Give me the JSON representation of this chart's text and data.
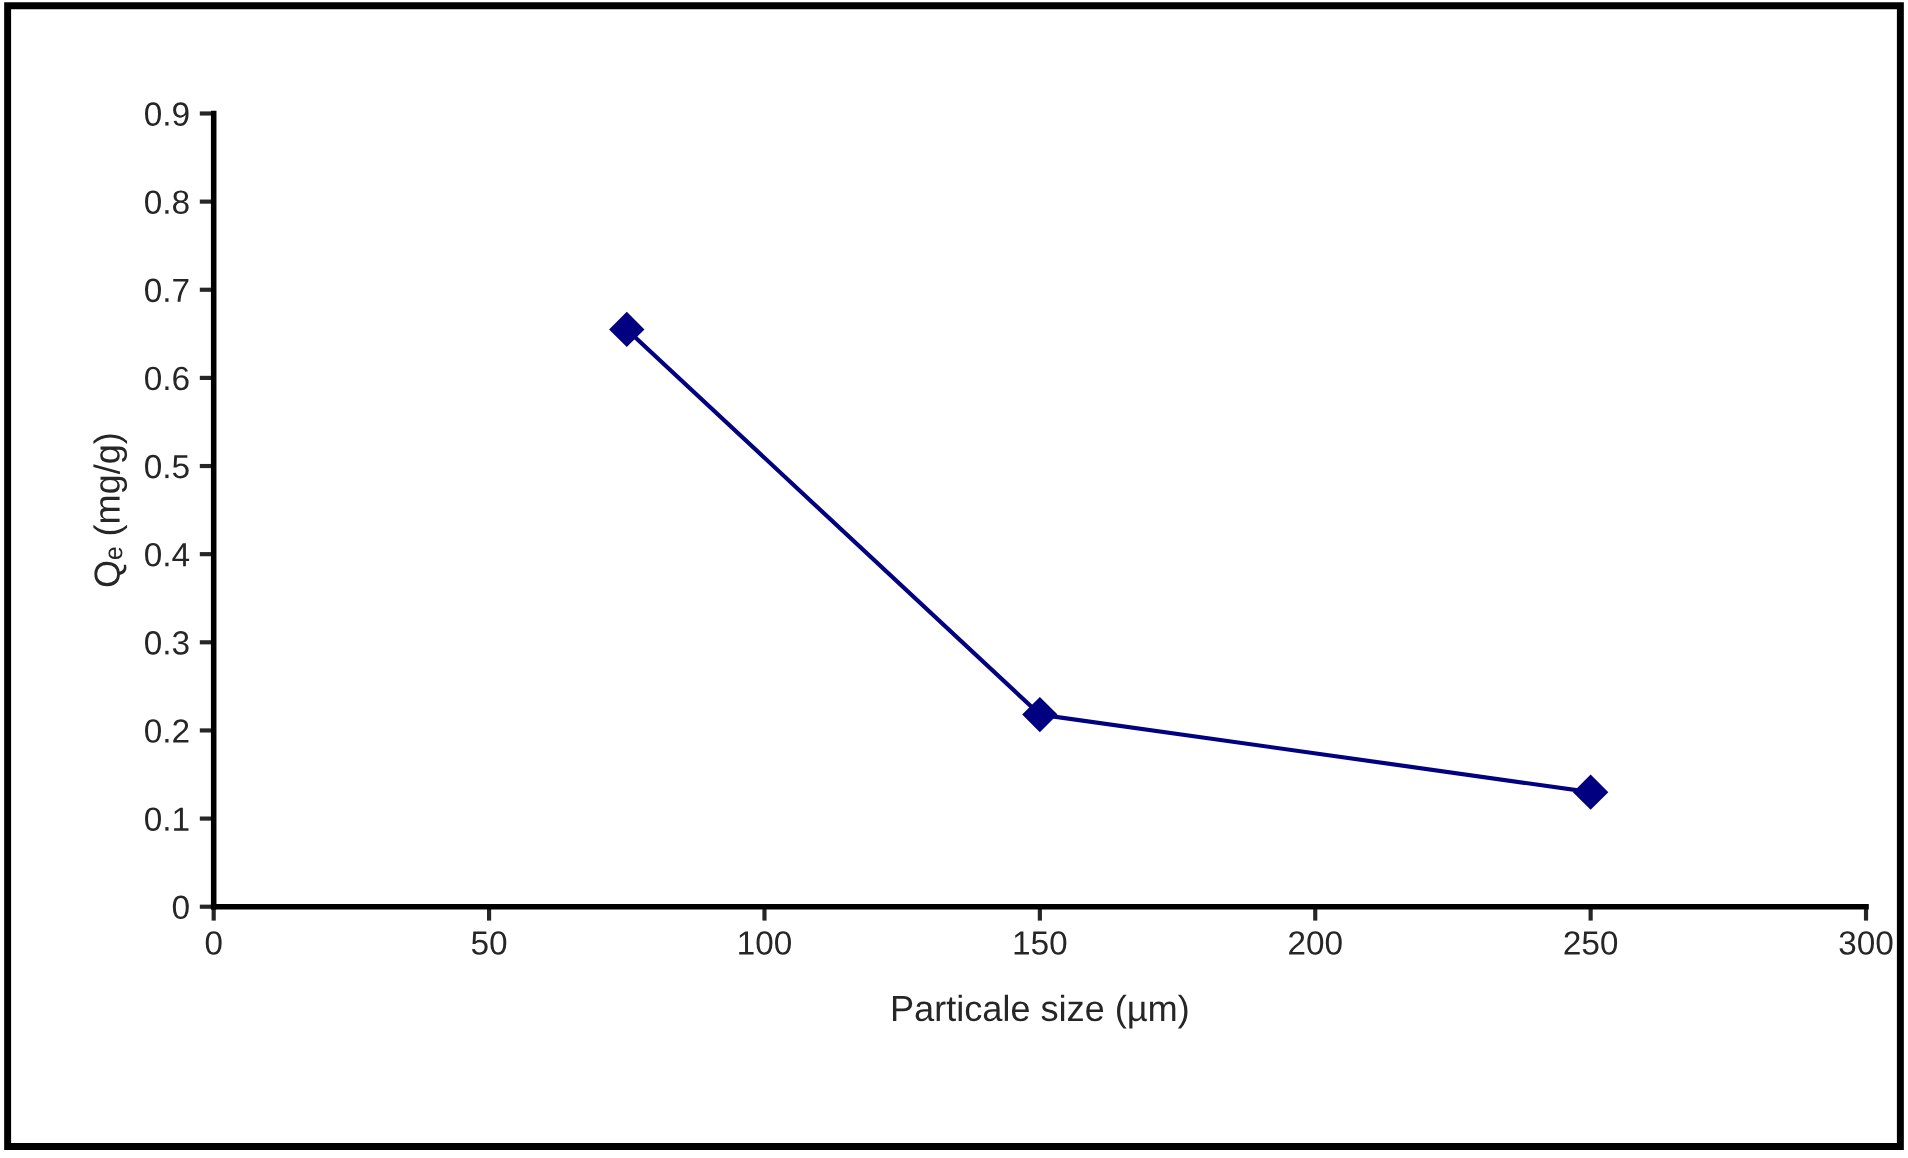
{
  "chart_data": {
    "type": "line",
    "xlabel": "Particale size (µm)",
    "ylabel": "Qₑ (mg/g)",
    "x": [
      75,
      150,
      250
    ],
    "series": [
      {
        "color": "#000080",
        "values": [
          0.655,
          0.218,
          0.13
        ]
      }
    ],
    "xlim": [
      0,
      300
    ],
    "xticks": [
      0,
      50,
      100,
      150,
      200,
      250,
      300
    ],
    "ylim": [
      0,
      0.9
    ],
    "yticks": [
      0,
      0.1,
      0.2,
      0.3,
      0.4,
      0.5,
      0.6,
      0.7,
      0.8,
      0.9
    ],
    "grid": false,
    "legend": false,
    "marker": "diamond",
    "line_style": "solid"
  }
}
